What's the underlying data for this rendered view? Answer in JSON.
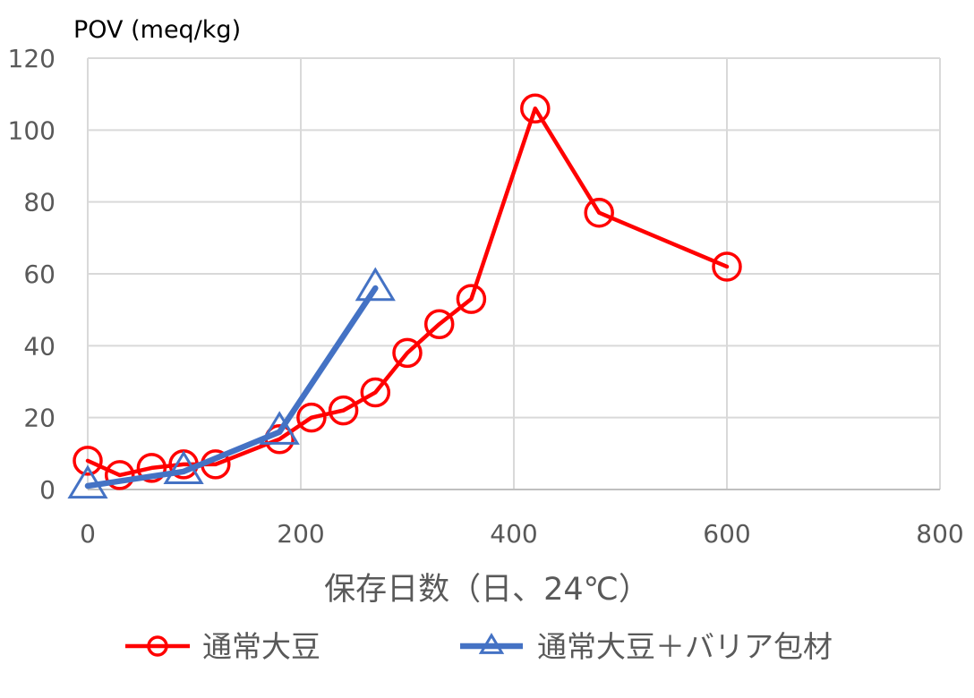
{
  "chart_data": {
    "type": "line",
    "title": "",
    "ylabel": "POV (meq/kg)",
    "xlabel": "保存日数（日、24℃）",
    "xlim": [
      0,
      800
    ],
    "ylim": [
      0,
      120
    ],
    "x_ticks": [
      0,
      200,
      400,
      600,
      800
    ],
    "y_ticks": [
      0,
      20,
      40,
      60,
      80,
      100,
      120
    ],
    "grid": true,
    "legend_position": "bottom",
    "series": [
      {
        "name": "通常大豆",
        "color": "#ff0000",
        "marker": "circle",
        "x": [
          0,
          30,
          60,
          90,
          120,
          180,
          210,
          240,
          270,
          300,
          330,
          360,
          420,
          480,
          600
        ],
        "y": [
          8,
          4,
          6,
          7,
          7,
          14,
          20,
          22,
          27,
          38,
          46,
          53,
          106,
          77,
          62
        ]
      },
      {
        "name": "通常大豆＋バリア包材",
        "color": "#4472c4",
        "marker": "triangle",
        "x": [
          0,
          90,
          180,
          270
        ],
        "y": [
          1,
          5,
          16,
          56
        ]
      }
    ]
  }
}
